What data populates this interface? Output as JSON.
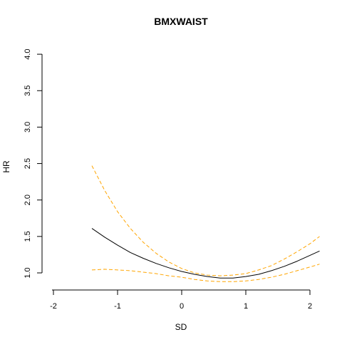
{
  "chart_data": {
    "type": "line",
    "title": "BMXWAIST",
    "xlabel": "SD",
    "ylabel": "HR",
    "xlim": [
      -2,
      2.2
    ],
    "ylim": [
      1.0,
      4.0
    ],
    "x_ticks": [
      -2,
      -1,
      0,
      1,
      2
    ],
    "x_tick_labels": [
      "-2",
      "-1",
      "0",
      "1",
      "2"
    ],
    "y_ticks": [
      1.0,
      1.5,
      2.0,
      2.5,
      3.0,
      3.5,
      4.0
    ],
    "y_tick_labels": [
      "1.0",
      "1.5",
      "2.0",
      "2.5",
      "3.0",
      "3.5",
      "4.0"
    ],
    "grid": false,
    "series": [
      {
        "role": "estimate",
        "color": "#000000",
        "dash": "solid",
        "x": [
          -1.4,
          -1.2,
          -1.0,
          -0.8,
          -0.6,
          -0.4,
          -0.2,
          0.0,
          0.2,
          0.4,
          0.6,
          0.8,
          1.0,
          1.2,
          1.4,
          1.6,
          1.8,
          2.0,
          2.15
        ],
        "y": [
          1.61,
          1.49,
          1.38,
          1.28,
          1.2,
          1.13,
          1.07,
          1.02,
          0.98,
          0.95,
          0.93,
          0.93,
          0.95,
          0.98,
          1.03,
          1.09,
          1.16,
          1.24,
          1.3
        ]
      },
      {
        "role": "upper",
        "color": "#FFA500",
        "dash": "dashed",
        "x": [
          -1.4,
          -1.2,
          -1.0,
          -0.8,
          -0.6,
          -0.4,
          -0.2,
          0.0,
          0.2,
          0.4,
          0.6,
          0.8,
          1.0,
          1.2,
          1.4,
          1.6,
          1.8,
          2.0,
          2.15
        ],
        "y": [
          2.47,
          2.13,
          1.84,
          1.61,
          1.42,
          1.27,
          1.15,
          1.06,
          1.0,
          0.97,
          0.96,
          0.97,
          0.99,
          1.04,
          1.1,
          1.19,
          1.29,
          1.4,
          1.5
        ]
      },
      {
        "role": "lower",
        "color": "#FFA500",
        "dash": "dashed",
        "x": [
          -1.4,
          -1.2,
          -1.0,
          -0.8,
          -0.6,
          -0.4,
          -0.2,
          0.0,
          0.2,
          0.4,
          0.6,
          0.8,
          1.0,
          1.2,
          1.4,
          1.6,
          1.8,
          2.0,
          2.15
        ],
        "y": [
          1.04,
          1.05,
          1.04,
          1.03,
          1.01,
          0.99,
          0.96,
          0.94,
          0.91,
          0.89,
          0.88,
          0.88,
          0.89,
          0.91,
          0.94,
          0.98,
          1.03,
          1.08,
          1.12
        ]
      }
    ]
  }
}
